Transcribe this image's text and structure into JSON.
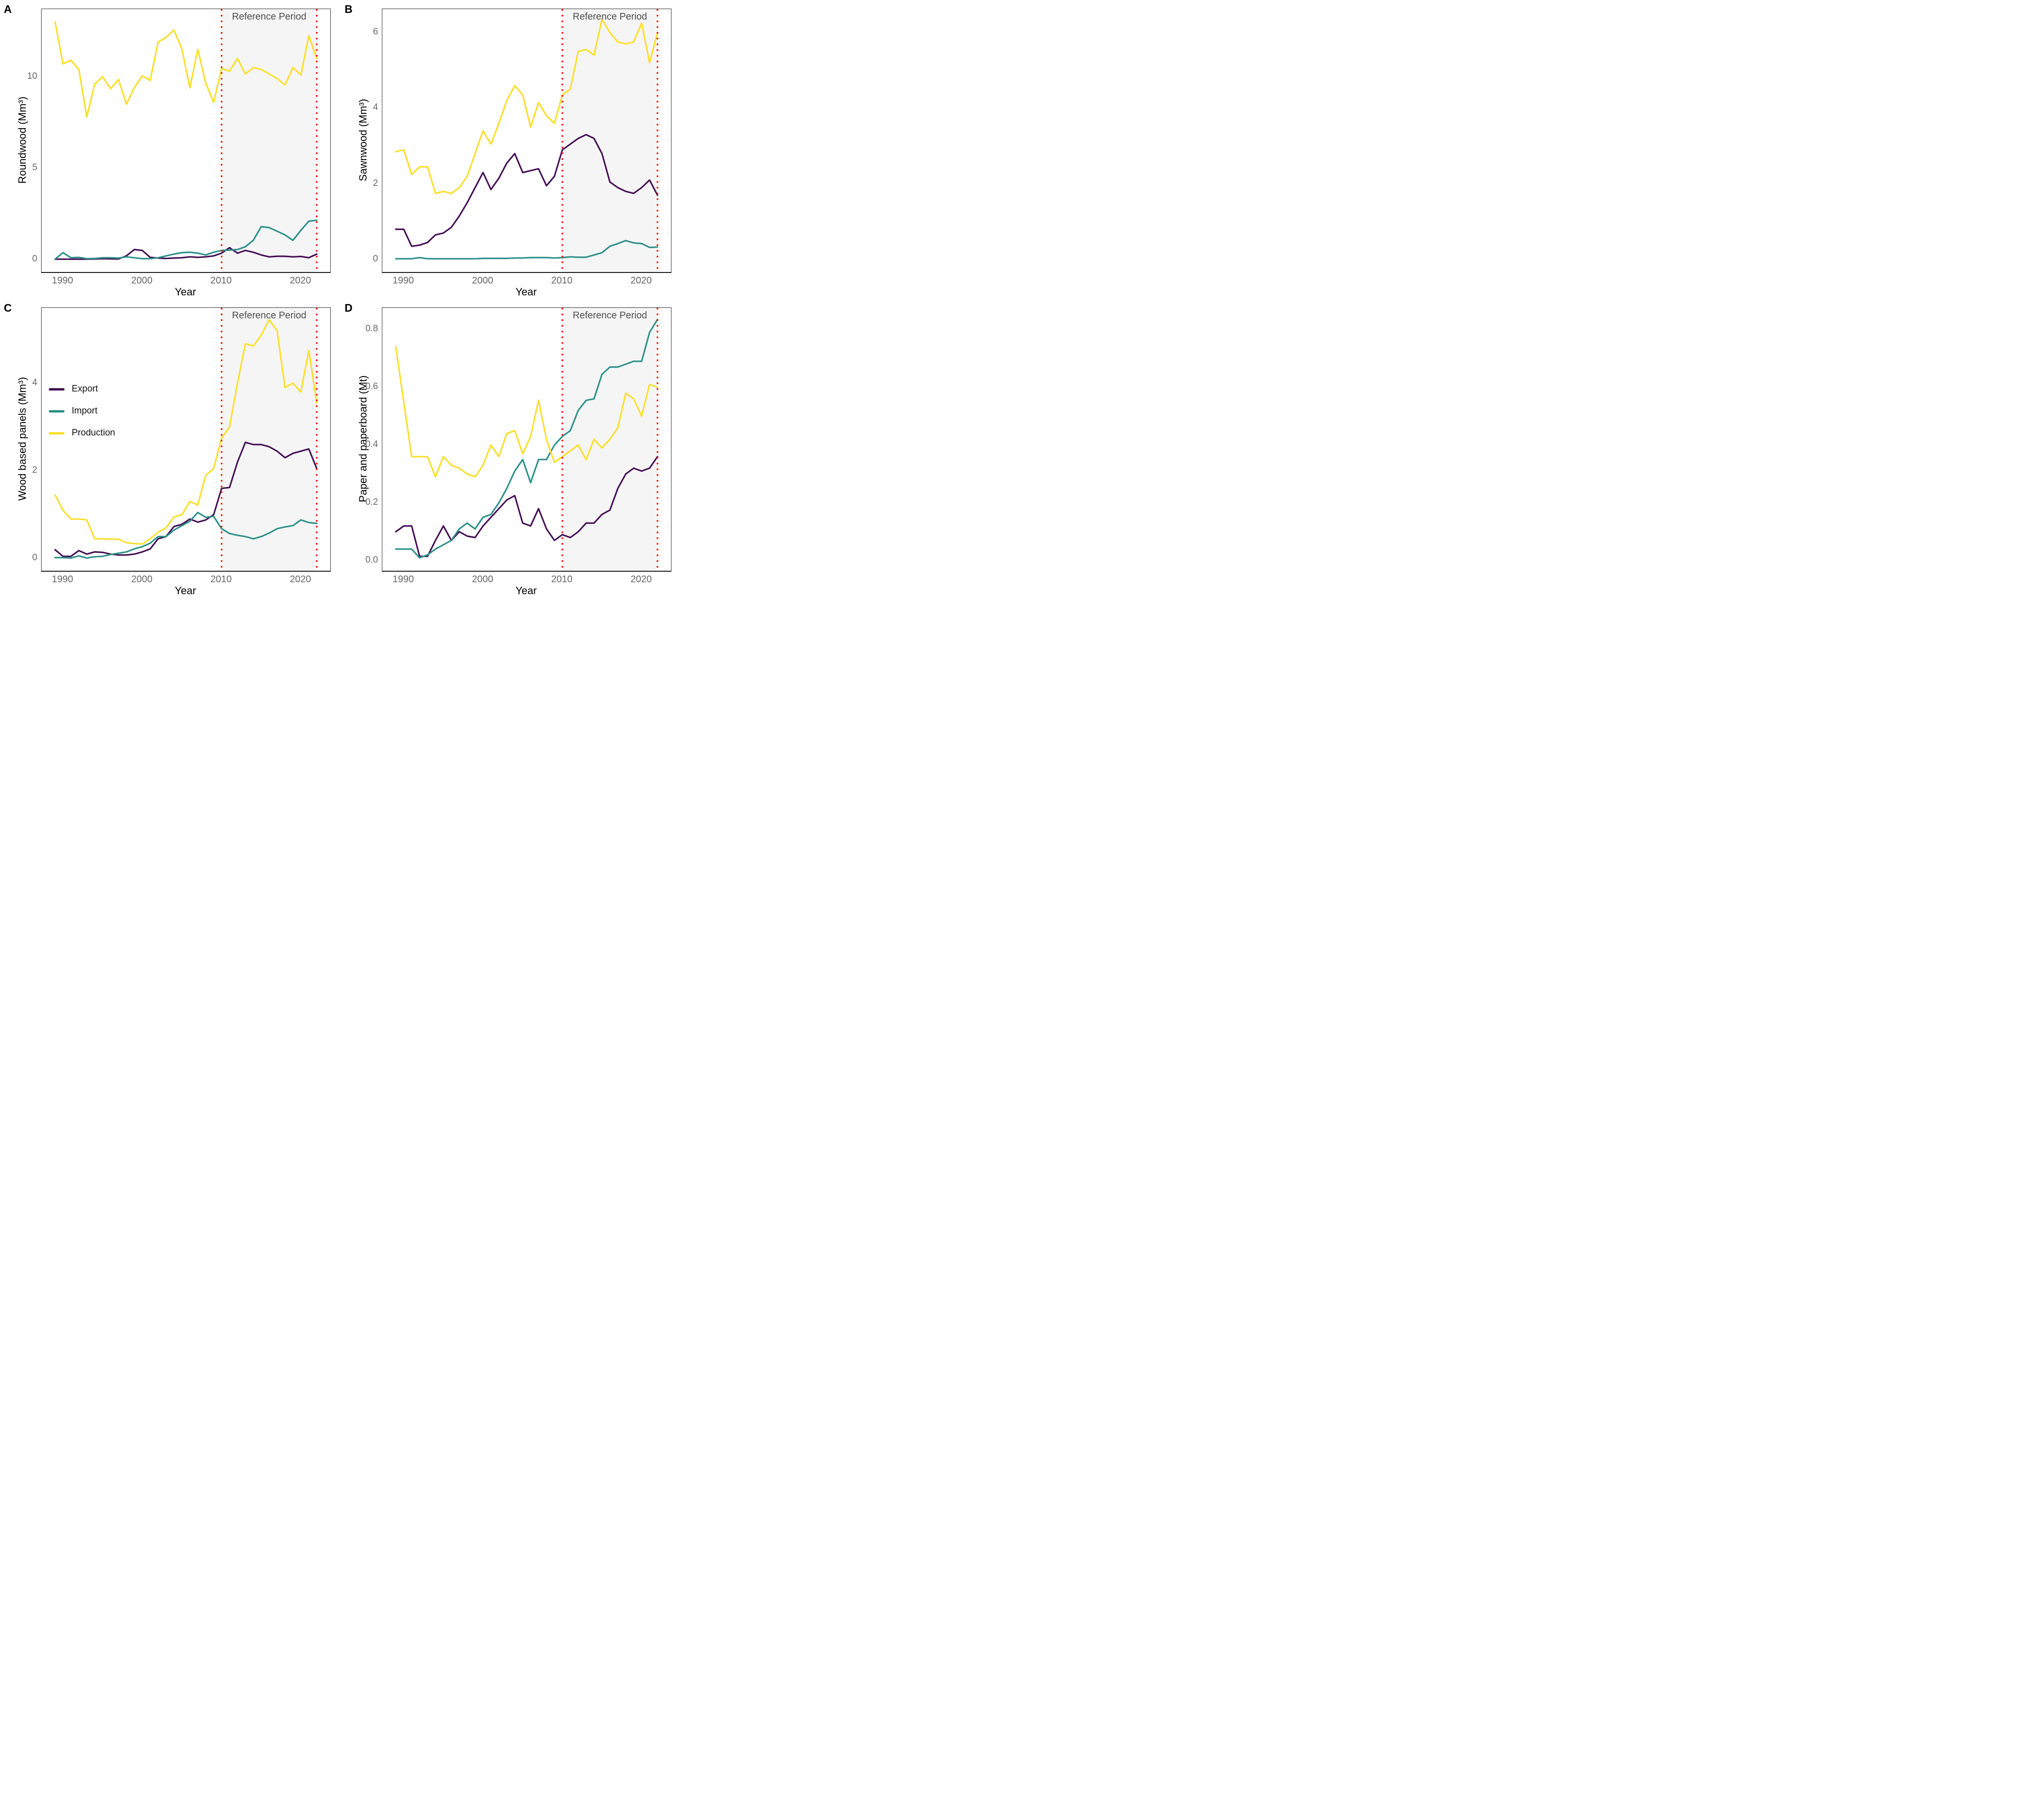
{
  "figure": {
    "kind": "four-panel line chart figure",
    "panels": [
      "A",
      "B",
      "C",
      "D"
    ],
    "annotation": "Reference Period",
    "x_axis_title": "Year"
  },
  "colors": {
    "export": "#440D54",
    "import": "#2B9089",
    "production": "#FBDF29",
    "reference_line": "#FB0F0C",
    "reference_band": "#F5F5F5",
    "panel_border": "#333333",
    "axis_tick_text": "#666666",
    "annotation_text": "#4D4D4D",
    "axis_title_text": "#000000"
  },
  "legend": {
    "entries": [
      {
        "label": "Export",
        "color_key": "export"
      },
      {
        "label": "Import",
        "color_key": "import"
      },
      {
        "label": "Production",
        "color_key": "production"
      }
    ],
    "shown_in_panel": "C"
  },
  "years": [
    1989,
    1990,
    1991,
    1992,
    1993,
    1994,
    1995,
    1996,
    1997,
    1998,
    1999,
    2000,
    2001,
    2002,
    2003,
    2004,
    2005,
    2006,
    2007,
    2008,
    2009,
    2010,
    2011,
    2012,
    2013,
    2014,
    2015,
    2016,
    2017,
    2018,
    2019,
    2020,
    2021,
    2022
  ],
  "chart_data": [
    {
      "panel": "A",
      "type": "line",
      "title": "",
      "xlabel": "Year",
      "ylabel": "Roundwood (Mm³)",
      "annotation": "Reference Period",
      "xlim": [
        1987.3,
        2023.7
      ],
      "ylim": [
        -0.68,
        13.7
      ],
      "xticks": [
        1990,
        2000,
        2010,
        2020
      ],
      "ytick_values": [
        0,
        5,
        10
      ],
      "ytick_labels": [
        "0",
        "5",
        "10"
      ],
      "reference_period": [
        2010,
        2022
      ],
      "grid": false,
      "series": [
        {
          "name": "Export",
          "color": "#440D54",
          "values": [
            0.02,
            0.02,
            0.02,
            0.02,
            0.02,
            0.03,
            0.05,
            0.04,
            0.03,
            0.2,
            0.55,
            0.5,
            0.12,
            0.08,
            0.06,
            0.08,
            0.1,
            0.15,
            0.12,
            0.15,
            0.2,
            0.35,
            0.65,
            0.35,
            0.5,
            0.4,
            0.25,
            0.15,
            0.18,
            0.18,
            0.15,
            0.17,
            0.1,
            0.3
          ]
        },
        {
          "name": "Import",
          "color": "#2B9089",
          "values": [
            0.02,
            0.38,
            0.1,
            0.12,
            0.05,
            0.06,
            0.1,
            0.1,
            0.08,
            0.15,
            0.1,
            0.05,
            0.05,
            0.1,
            0.2,
            0.3,
            0.38,
            0.4,
            0.35,
            0.25,
            0.4,
            0.5,
            0.52,
            0.55,
            0.7,
            1.05,
            1.8,
            1.75,
            1.55,
            1.35,
            1.05,
            1.6,
            2.1,
            2.15
          ]
        },
        {
          "name": "Production",
          "color": "#FBDF29",
          "values": [
            13.0,
            10.7,
            10.9,
            10.4,
            7.8,
            9.6,
            10.0,
            9.35,
            9.85,
            8.5,
            9.4,
            10.05,
            9.8,
            11.9,
            12.15,
            12.55,
            11.5,
            9.4,
            11.5,
            9.65,
            8.6,
            10.45,
            10.3,
            11.0,
            10.15,
            10.5,
            10.4,
            10.15,
            9.9,
            9.55,
            10.5,
            10.1,
            12.25,
            11.0
          ]
        }
      ]
    },
    {
      "panel": "B",
      "type": "line",
      "title": "",
      "xlabel": "Year",
      "ylabel": "Sawnwood (Mm³)",
      "annotation": "Reference Period",
      "xlim": [
        1987.3,
        2023.7
      ],
      "ylim": [
        -0.33,
        6.62
      ],
      "xticks": [
        1990,
        2000,
        2010,
        2020
      ],
      "ytick_values": [
        0,
        2,
        4,
        6
      ],
      "ytick_labels": [
        "0",
        "2",
        "4",
        "6"
      ],
      "reference_period": [
        2010,
        2022
      ],
      "grid": false,
      "series": [
        {
          "name": "Export",
          "color": "#440D54",
          "values": [
            0.8,
            0.8,
            0.35,
            0.38,
            0.45,
            0.65,
            0.7,
            0.85,
            1.15,
            1.5,
            1.9,
            2.3,
            1.85,
            2.15,
            2.55,
            2.8,
            2.3,
            2.35,
            2.4,
            1.95,
            2.2,
            2.9,
            3.05,
            3.2,
            3.3,
            3.2,
            2.8,
            2.05,
            1.9,
            1.8,
            1.75,
            1.9,
            2.1,
            1.7
          ]
        },
        {
          "name": "Import",
          "color": "#2B9089",
          "values": [
            0.02,
            0.02,
            0.02,
            0.05,
            0.02,
            0.02,
            0.02,
            0.02,
            0.02,
            0.02,
            0.02,
            0.03,
            0.03,
            0.03,
            0.03,
            0.04,
            0.04,
            0.05,
            0.05,
            0.05,
            0.04,
            0.05,
            0.07,
            0.06,
            0.06,
            0.12,
            0.18,
            0.35,
            0.42,
            0.5,
            0.44,
            0.42,
            0.32,
            0.33
          ]
        },
        {
          "name": "Production",
          "color": "#FBDF29",
          "values": [
            2.85,
            2.9,
            2.25,
            2.45,
            2.45,
            1.75,
            1.8,
            1.75,
            1.9,
            2.2,
            2.8,
            3.4,
            3.05,
            3.6,
            4.2,
            4.6,
            4.35,
            3.5,
            4.15,
            3.8,
            3.6,
            4.35,
            4.5,
            5.5,
            5.55,
            5.4,
            6.35,
            6.0,
            5.75,
            5.7,
            5.75,
            6.25,
            5.2,
            6.0
          ]
        }
      ]
    },
    {
      "panel": "C",
      "type": "line",
      "title": "",
      "xlabel": "Year",
      "ylabel": "Wood based panels (Mm³)",
      "annotation": "Reference Period",
      "xlim": [
        1987.3,
        2023.7
      ],
      "ylim": [
        -0.28,
        5.72
      ],
      "xticks": [
        1990,
        2000,
        2010,
        2020
      ],
      "ytick_values": [
        0,
        2,
        4
      ],
      "ytick_labels": [
        "0",
        "2",
        "4"
      ],
      "reference_period": [
        2010,
        2022
      ],
      "grid": false,
      "legend_position": "upper-left",
      "series": [
        {
          "name": "Export",
          "color": "#440D54",
          "values": [
            0.2,
            0.05,
            0.05,
            0.18,
            0.1,
            0.15,
            0.14,
            0.1,
            0.08,
            0.08,
            0.1,
            0.15,
            0.22,
            0.45,
            0.5,
            0.73,
            0.78,
            0.9,
            0.83,
            0.88,
            1.0,
            1.6,
            1.62,
            2.2,
            2.65,
            2.6,
            2.6,
            2.55,
            2.45,
            2.3,
            2.4,
            2.45,
            2.5,
            2.05
          ]
        },
        {
          "name": "Import",
          "color": "#2B9089",
          "values": [
            0.02,
            0.02,
            0.01,
            0.06,
            0.01,
            0.04,
            0.05,
            0.09,
            0.12,
            0.15,
            0.22,
            0.27,
            0.35,
            0.5,
            0.5,
            0.65,
            0.75,
            0.85,
            1.05,
            0.94,
            0.96,
            0.68,
            0.57,
            0.53,
            0.5,
            0.45,
            0.5,
            0.58,
            0.68,
            0.72,
            0.75,
            0.88,
            0.82,
            0.8
          ]
        },
        {
          "name": "Production",
          "color": "#FBDF29",
          "values": [
            1.45,
            1.1,
            0.9,
            0.9,
            0.88,
            0.45,
            0.45,
            0.44,
            0.44,
            0.36,
            0.34,
            0.33,
            0.45,
            0.6,
            0.7,
            0.95,
            1.0,
            1.3,
            1.22,
            1.9,
            2.05,
            2.75,
            3.0,
            4.0,
            4.9,
            4.85,
            5.1,
            5.45,
            5.2,
            3.9,
            4.0,
            3.8,
            4.75,
            3.55
          ]
        }
      ]
    },
    {
      "panel": "D",
      "type": "line",
      "title": "",
      "xlabel": "Year",
      "ylabel": "Paper and paperboard (Mt)",
      "annotation": "Reference Period",
      "xlim": [
        1987.3,
        2023.7
      ],
      "ylim": [
        -0.035,
        0.875
      ],
      "xticks": [
        1990,
        2000,
        2010,
        2020
      ],
      "ytick_values": [
        0.0,
        0.2,
        0.4,
        0.6,
        0.8
      ],
      "ytick_labels": [
        "0.0",
        "0.2",
        "0.4",
        "0.6",
        "0.8"
      ],
      "reference_period": [
        2010,
        2022
      ],
      "grid": false,
      "series": [
        {
          "name": "Export",
          "color": "#440D54",
          "values": [
            0.1,
            0.12,
            0.12,
            0.015,
            0.015,
            0.07,
            0.12,
            0.07,
            0.1,
            0.085,
            0.08,
            0.12,
            0.15,
            0.18,
            0.21,
            0.225,
            0.13,
            0.12,
            0.18,
            0.11,
            0.07,
            0.09,
            0.08,
            0.1,
            0.13,
            0.13,
            0.16,
            0.175,
            0.25,
            0.3,
            0.32,
            0.31,
            0.32,
            0.36
          ]
        },
        {
          "name": "Import",
          "color": "#2B9089",
          "values": [
            0.04,
            0.04,
            0.04,
            0.01,
            0.02,
            0.04,
            0.055,
            0.07,
            0.11,
            0.13,
            0.11,
            0.15,
            0.16,
            0.2,
            0.25,
            0.31,
            0.35,
            0.27,
            0.35,
            0.35,
            0.4,
            0.43,
            0.45,
            0.52,
            0.555,
            0.56,
            0.645,
            0.67,
            0.67,
            0.68,
            0.69,
            0.69,
            0.79,
            0.835
          ]
        },
        {
          "name": "Production",
          "color": "#FBDF29",
          "values": [
            0.74,
            0.55,
            0.36,
            0.36,
            0.36,
            0.29,
            0.36,
            0.33,
            0.32,
            0.3,
            0.29,
            0.33,
            0.4,
            0.36,
            0.44,
            0.45,
            0.37,
            0.43,
            0.555,
            0.42,
            0.34,
            0.36,
            0.38,
            0.4,
            0.35,
            0.42,
            0.39,
            0.42,
            0.46,
            0.58,
            0.56,
            0.5,
            0.61,
            0.6
          ]
        }
      ]
    }
  ]
}
